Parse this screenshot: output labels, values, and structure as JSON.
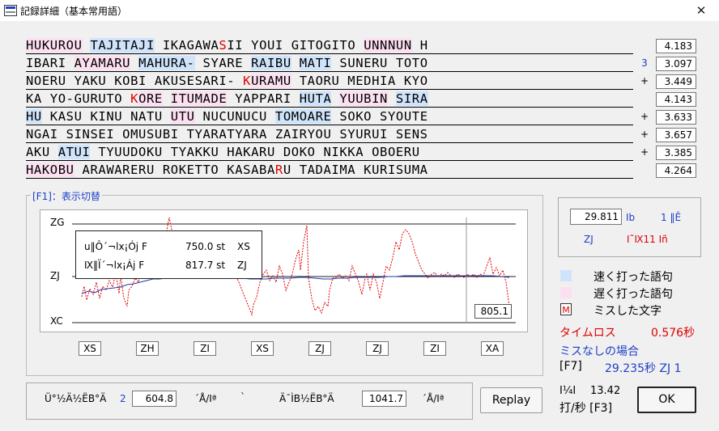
{
  "window": {
    "title": "記録詳細（基本常用語）",
    "close_glyph": "✕"
  },
  "lines": [
    {
      "value": "4.183",
      "mark": "",
      "mark_color": "",
      "words": [
        {
          "t": "HUKUROU",
          "s": "slow"
        },
        {
          "t": " ",
          "s": ""
        },
        {
          "t": "TAJITAJI",
          "s": "fast"
        },
        {
          "t": " ",
          "s": ""
        },
        {
          "t": "IKAGAWA",
          "s": ""
        },
        {
          "t": "S",
          "s": "",
          "miss": true
        },
        {
          "t": "II YOUI GITOGITO ",
          "s": ""
        },
        {
          "t": "UNNNUN",
          "s": "slow"
        },
        {
          "t": " H",
          "s": ""
        }
      ]
    },
    {
      "value": "3.097",
      "mark": "3",
      "mark_color": "blue",
      "words": [
        {
          "t": "IBARI ",
          "s": ""
        },
        {
          "t": "AYAMARU",
          "s": "slow"
        },
        {
          "t": " ",
          "s": ""
        },
        {
          "t": "MAHURA-",
          "s": "fast"
        },
        {
          "t": " SYARE ",
          "s": ""
        },
        {
          "t": "RAIBU",
          "s": "fast"
        },
        {
          "t": " ",
          "s": ""
        },
        {
          "t": "MATI",
          "s": "fast"
        },
        {
          "t": " SUNERU TOTO",
          "s": ""
        }
      ]
    },
    {
      "value": "3.449",
      "mark": "+",
      "mark_color": "",
      "words": [
        {
          "t": "NOERU YAKU KOBI AKUSESARI- ",
          "s": ""
        },
        {
          "t": "K",
          "s": "",
          "miss": true
        },
        {
          "t": "URAMU",
          "s": "slow"
        },
        {
          "t": " TAORU MEDHIA KYO",
          "s": ""
        }
      ]
    },
    {
      "value": "4.143",
      "mark": "",
      "mark_color": "",
      "words": [
        {
          "t": "KA YO-GURUTO ",
          "s": ""
        },
        {
          "t": "K",
          "s": "",
          "miss": true
        },
        {
          "t": "ORE",
          "s": "slow"
        },
        {
          "t": " ",
          "s": ""
        },
        {
          "t": "ITUMADE",
          "s": "slow"
        },
        {
          "t": " YAPPARI ",
          "s": ""
        },
        {
          "t": "HUTA",
          "s": "fast"
        },
        {
          "t": " ",
          "s": ""
        },
        {
          "t": "YUUBIN",
          "s": "slow"
        },
        {
          "t": " ",
          "s": ""
        },
        {
          "t": "SIRA",
          "s": "fast"
        }
      ]
    },
    {
      "value": "3.633",
      "mark": "+",
      "mark_color": "",
      "words": [
        {
          "t": "HU",
          "s": "fast"
        },
        {
          "t": " KASU KINU NATU ",
          "s": ""
        },
        {
          "t": "UTU",
          "s": "slow"
        },
        {
          "t": " NUCUNUCU ",
          "s": ""
        },
        {
          "t": "TOMOARE",
          "s": "fast"
        },
        {
          "t": " SOKO SYOUTE",
          "s": ""
        }
      ]
    },
    {
      "value": "3.657",
      "mark": "+",
      "mark_color": "",
      "words": [
        {
          "t": "NGAI SINSEI OMUSUBI TYARATYARA ZAIRYOU SYURUI SENS",
          "s": ""
        }
      ]
    },
    {
      "value": "3.385",
      "mark": "+",
      "mark_color": "",
      "words": [
        {
          "t": "AKU ",
          "s": ""
        },
        {
          "t": "ATUI",
          "s": "fast"
        },
        {
          "t": " TYUUDOKU TYAKKU HAKARU DOKO NIKKA OBOERU",
          "s": ""
        }
      ]
    },
    {
      "value": "4.264",
      "mark": "",
      "mark_color": "",
      "words": [
        {
          "t": "HAKOBU",
          "s": "slow"
        },
        {
          "t": " ARAWARERU ROKETTO KASABA",
          "s": ""
        },
        {
          "t": "R",
          "s": "",
          "miss": true
        },
        {
          "t": "U TADAIMA KURISUMA",
          "s": ""
        }
      ]
    }
  ],
  "graph": {
    "group_label": "[F1]：表示切替",
    "y_labels": [
      "ZG",
      "ZJ",
      "XC"
    ],
    "x_ticks": [
      "XS",
      "ZH",
      "ZI",
      "XS",
      "ZJ",
      "ZJ",
      "ZI",
      "XA"
    ],
    "overlay": {
      "row1_label": "u‖Ô´¬lx¡Ój F",
      "row1_value": "750.0 st",
      "row1_rank": "XS",
      "row2_label": "Ⅸ‖Ï´¬lx¡Áj F",
      "row2_value": "817.7 st",
      "row2_rank": "ZJ"
    },
    "end_value": "805.1"
  },
  "right": {
    "time_value": "29.811",
    "time_unit": "Ⅰb",
    "rank_num": "1 ‖Ê",
    "rank": "ZJ",
    "miss_text": "Ⅰ˜Ⅸ11 Ⅰñ",
    "legend_fast": "速く打った語句",
    "legend_slow": "遅く打った語句",
    "legend_miss": "ミスした文字",
    "legend_miss_glyph": "M",
    "time_loss_label": "タイムロス",
    "time_loss_value": "0.576秒",
    "nomiss_label": "ミスなしの場合",
    "f7_label": "[F7]",
    "f7_value": "29.235秒 ZJ  1",
    "speed_label": "Ⅰ¼Ⅰ",
    "speed_value": "13.42",
    "speed_unit": "打/秒 [F3]"
  },
  "bottom": {
    "label1": "Ü°½Ä½ËB°Ä",
    "num1": "2",
    "value1": "604.8",
    "unit1": "´Å/Ⅰª",
    "backtick": "`",
    "label2": "Ä¯ÌB½ËB°Ä",
    "value2": "1041.7",
    "unit2": "´Å/Ⅰª"
  },
  "buttons": {
    "replay": "Replay",
    "ok": "OK"
  },
  "colors": {
    "fast": "#cfe4fb",
    "slow": "#fcdff0",
    "miss": "#e00000",
    "accent": "#1e40c8"
  }
}
